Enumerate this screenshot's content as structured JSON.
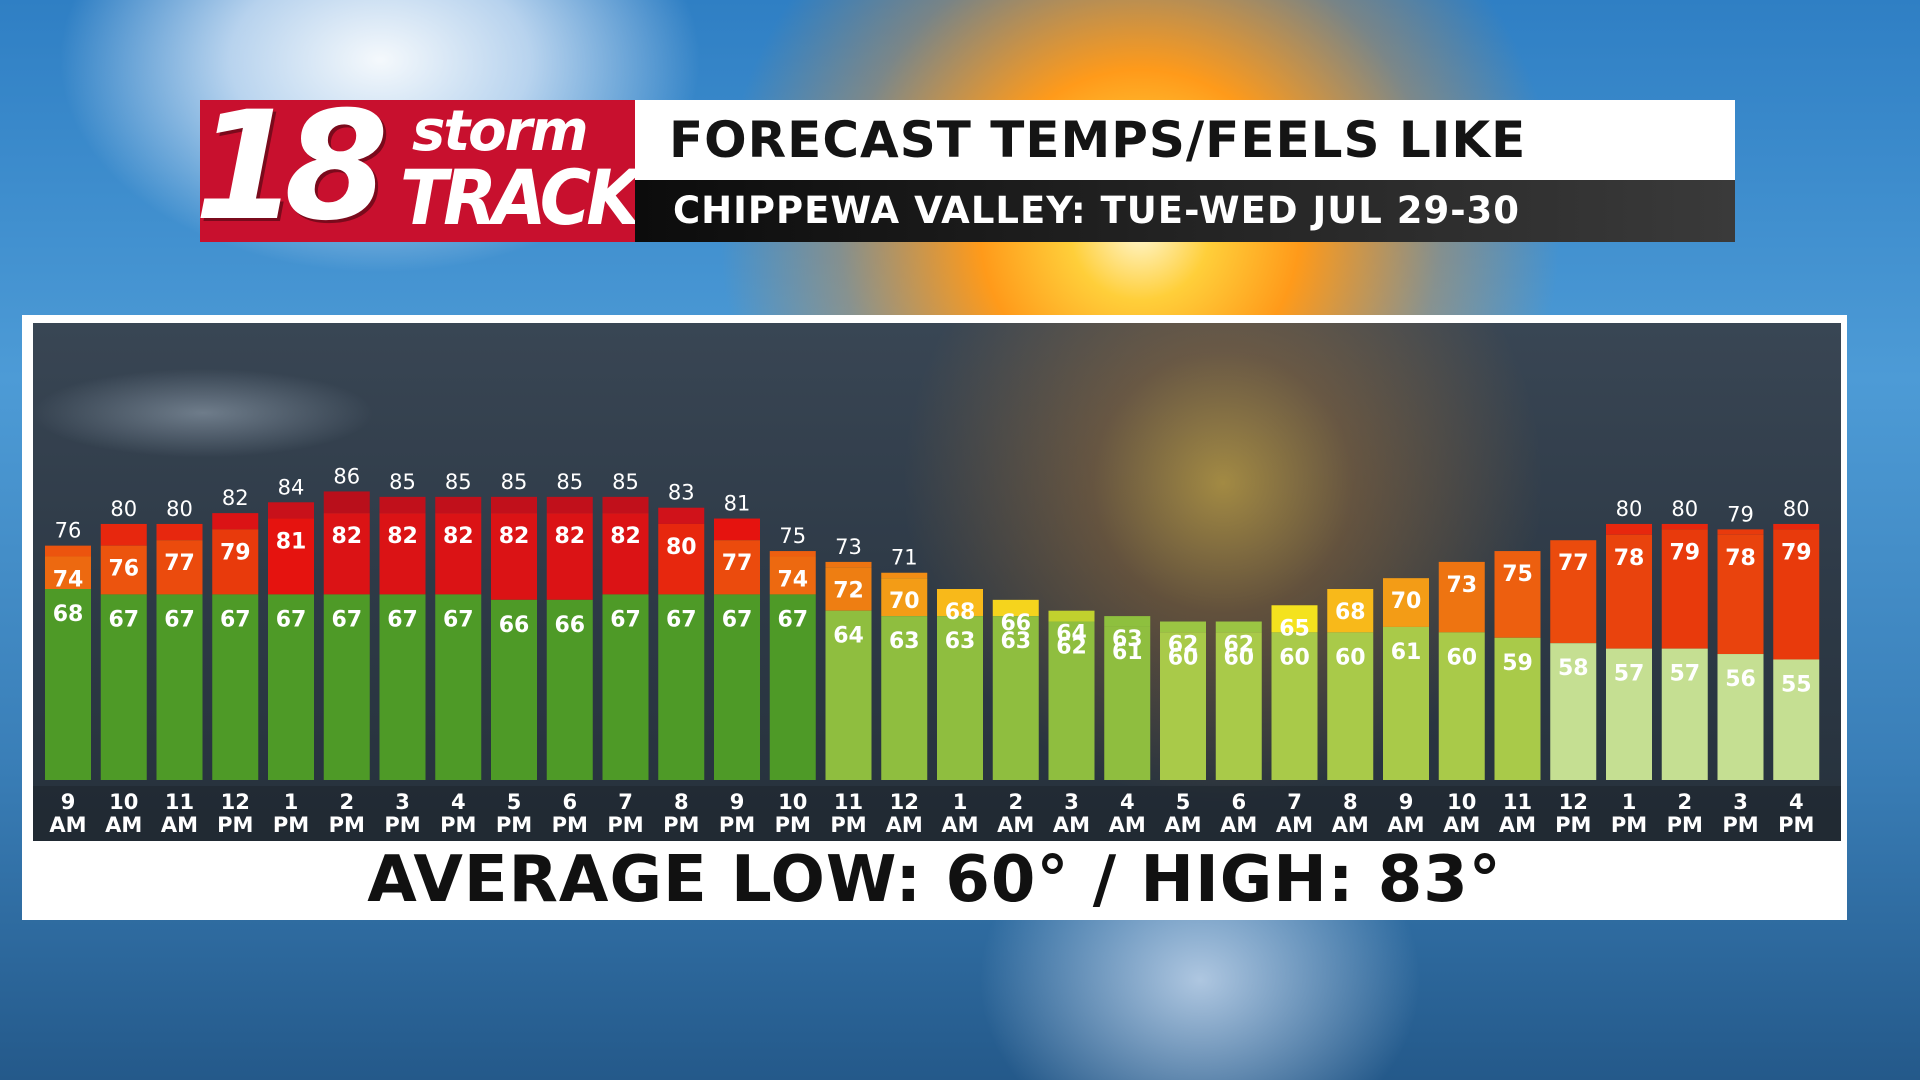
{
  "brand": {
    "number": "18",
    "word1": "storm",
    "word2": "TRACK"
  },
  "header": {
    "title": "FORECAST TEMPS/FEELS LIKE",
    "subtitle": "CHIPPEWA VALLEY: TUE-WED JUL 29-30"
  },
  "footer": {
    "summary": "AVERAGE LOW: 60° / HIGH: 83°"
  },
  "chart_data": {
    "type": "bar",
    "title": "FORECAST TEMPS/FEELS LIKE",
    "subtitle": "CHIPPEWA VALLEY: TUE-WED JUL 29-30",
    "categories": [
      [
        "9",
        "AM"
      ],
      [
        "10",
        "AM"
      ],
      [
        "11",
        "AM"
      ],
      [
        "12",
        "PM"
      ],
      [
        "1",
        "PM"
      ],
      [
        "2",
        "PM"
      ],
      [
        "3",
        "PM"
      ],
      [
        "4",
        "PM"
      ],
      [
        "5",
        "PM"
      ],
      [
        "6",
        "PM"
      ],
      [
        "7",
        "PM"
      ],
      [
        "8",
        "PM"
      ],
      [
        "9",
        "PM"
      ],
      [
        "10",
        "PM"
      ],
      [
        "11",
        "PM"
      ],
      [
        "12",
        "AM"
      ],
      [
        "1",
        "AM"
      ],
      [
        "2",
        "AM"
      ],
      [
        "3",
        "AM"
      ],
      [
        "4",
        "AM"
      ],
      [
        "5",
        "AM"
      ],
      [
        "6",
        "AM"
      ],
      [
        "7",
        "AM"
      ],
      [
        "8",
        "AM"
      ],
      [
        "9",
        "AM"
      ],
      [
        "10",
        "AM"
      ],
      [
        "11",
        "AM"
      ],
      [
        "12",
        "PM"
      ],
      [
        "1",
        "PM"
      ],
      [
        "2",
        "PM"
      ],
      [
        "3",
        "PM"
      ],
      [
        "4",
        "PM"
      ]
    ],
    "series": [
      {
        "values": [
          76,
          80,
          80,
          82,
          84,
          86,
          85,
          85,
          85,
          85,
          85,
          83,
          81,
          75,
          73,
          71,
          68,
          66,
          64,
          63,
          62,
          62,
          65,
          68,
          70,
          73,
          75,
          77,
          80,
          80,
          79,
          80
        ]
      },
      {
        "values": [
          74,
          76,
          77,
          79,
          81,
          82,
          82,
          82,
          82,
          82,
          82,
          80,
          77,
          74,
          72,
          70,
          68,
          66,
          64,
          63,
          62,
          62,
          65,
          68,
          70,
          73,
          75,
          77,
          78,
          79,
          78,
          79
        ]
      },
      {
        "values": [
          68,
          67,
          67,
          67,
          67,
          67,
          67,
          67,
          66,
          66,
          67,
          67,
          67,
          67,
          64,
          63,
          63,
          63,
          62,
          61,
          60,
          60,
          60,
          60,
          61,
          60,
          59,
          58,
          57,
          57,
          56,
          55
        ]
      }
    ],
    "ylim": [
      0,
      90
    ],
    "grid": false,
    "colors": {
      "scale_values": [
        55,
        60,
        63,
        65,
        68,
        72,
        76,
        79,
        81,
        83,
        86
      ],
      "scale_colors": [
        "#c5df92",
        "#b4cf4c",
        "#8ec03e",
        "#f4e21e",
        "#f8b91a",
        "#ee7e12",
        "#ec540e",
        "#e83a0c",
        "#e5130f",
        "#d0121a",
        "#b90f1b"
      ],
      "dew_early": "#4e9a27",
      "dew_late": "#8fbe3f"
    }
  }
}
